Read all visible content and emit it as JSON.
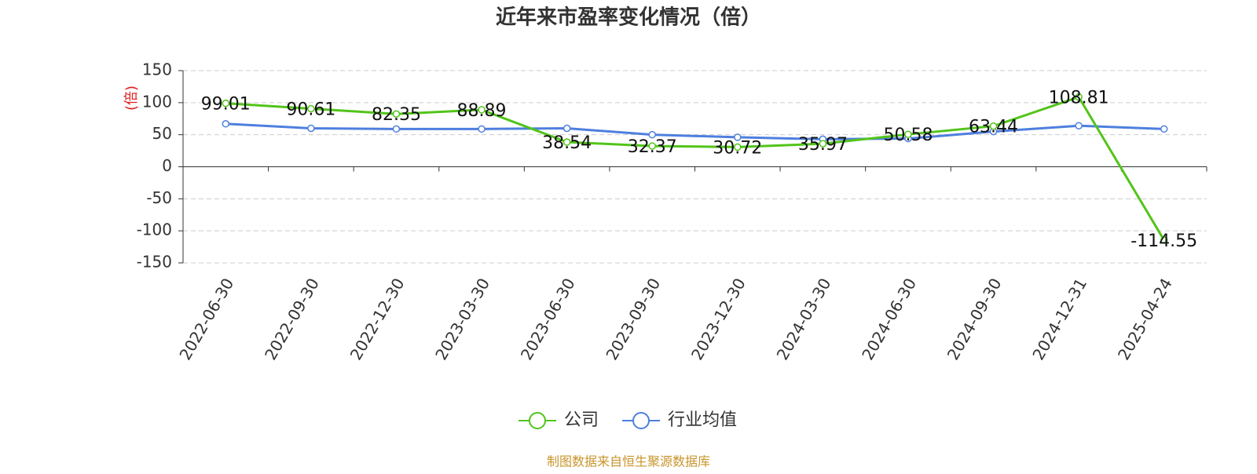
{
  "chart_data": {
    "type": "line",
    "title": "近年来市盈率变化情况（倍）",
    "y_label": "(倍)",
    "source": "制图数据来自恒生聚源数据库",
    "categories": [
      "2022-06-30",
      "2022-09-30",
      "2022-12-30",
      "2023-03-30",
      "2023-06-30",
      "2023-09-30",
      "2023-12-30",
      "2024-03-30",
      "2024-06-30",
      "2024-09-30",
      "2024-12-31",
      "2025-04-24"
    ],
    "series": [
      {
        "name": "公司",
        "color": "#52c41a",
        "values": [
          99.01,
          90.61,
          82.35,
          88.89,
          38.54,
          32.37,
          30.72,
          35.97,
          50.58,
          63.44,
          108.81,
          -114.55
        ],
        "labels": true
      },
      {
        "name": "行业均值",
        "color": "#4e7fde",
        "values": [
          67,
          60,
          59,
          59,
          60,
          50,
          46,
          43,
          44,
          55,
          64,
          59
        ],
        "labels": false
      }
    ],
    "ylim": [
      -150,
      150
    ],
    "yticks": [
      -150,
      -100,
      -50,
      0,
      50,
      100,
      150
    ],
    "grid": true,
    "legend": "bottom"
  }
}
